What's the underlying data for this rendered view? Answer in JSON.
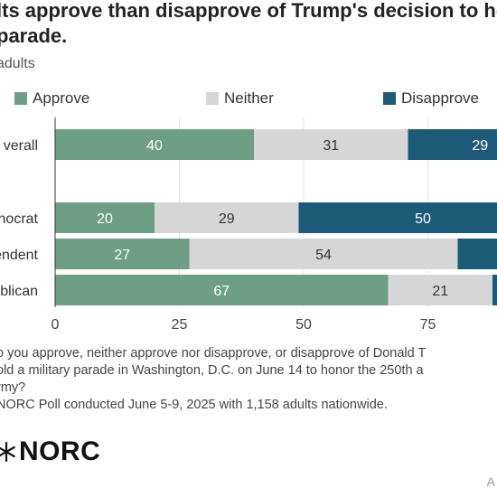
{
  "header": {
    "title": "lts approve than disapprove of Trump's decision to he\nparade.",
    "subtitle": "adults"
  },
  "colors": {
    "approve": "#6e9e85",
    "neither": "#d6d6d6",
    "disapprove": "#1d5a78",
    "text_light": "#ffffff",
    "text_dark": "#333333"
  },
  "chart_data": {
    "type": "bar",
    "orientation": "horizontal",
    "stacked": true,
    "categories": [
      "verall",
      "nocrat",
      "endent",
      "blican"
    ],
    "series": [
      {
        "name": "Approve",
        "values": [
          40,
          20,
          27,
          67
        ]
      },
      {
        "name": "Neither",
        "values": [
          31,
          29,
          54,
          21
        ]
      },
      {
        "name": "Disapprove",
        "values": [
          29,
          50,
          19,
          12
        ]
      }
    ],
    "value_labels": [
      [
        "40",
        "31",
        "29"
      ],
      [
        "20",
        "29",
        "50"
      ],
      [
        "27",
        "54",
        ""
      ],
      [
        "67",
        "21",
        ""
      ]
    ],
    "xlim": [
      0,
      100
    ],
    "x_ticks": [
      "0",
      "25",
      "50",
      "75"
    ],
    "grid": true,
    "legend_position": "top"
  },
  "footer": {
    "question": "o you approve, neither approve nor disapprove, or disapprove of Donald T\nold a military parade in Washington, D.C. on June 14 to honor the 250th a\nrmy?",
    "source": "NORC Poll conducted June 5-9, 2025 with 1,158 adults nationwide.",
    "logo_text": "NORC",
    "corner_text": "A"
  }
}
